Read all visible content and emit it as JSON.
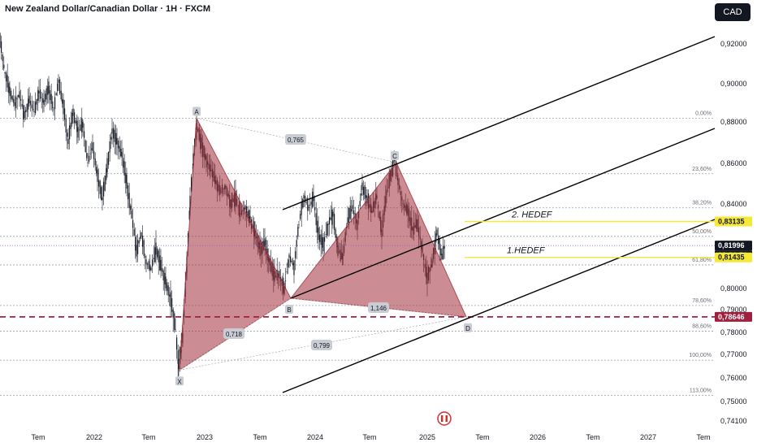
{
  "header": {
    "title": "New Zealand Dollar/Canadian Dollar · 1H · FXCM",
    "currency_button": "CAD"
  },
  "chart_data": {
    "type": "line",
    "title": "New Zealand Dollar/Canadian Dollar · 1H · FXCM",
    "ylim": [
      0.737,
      0.928
    ],
    "grid": true,
    "y_ticks": [
      "0,92000",
      "0,90000",
      "0,88000",
      "0,86000",
      "0,84000",
      "0,80000",
      "0,79000",
      "0,78000",
      "0,77000",
      "0,76000",
      "0,75000",
      "0,74100"
    ],
    "x_ticks": [
      "Tem",
      "2022",
      "Tem",
      "2023",
      "Tem",
      "2024",
      "Tem",
      "2025",
      "Tem",
      "2026",
      "Tem",
      "2027",
      "Tem"
    ],
    "price_tags": [
      {
        "label": "0,83135",
        "bg": "#f5e837",
        "fg": "#131722"
      },
      {
        "label": "0,81996",
        "bg": "#131722",
        "fg": "#ffffff"
      },
      {
        "label": "03:31:51",
        "bg": "#131722",
        "fg": "#ffffff"
      },
      {
        "label": "0,81435",
        "bg": "#f5e837",
        "fg": "#131722"
      },
      {
        "label": "0,78646",
        "bg": "#a0203f",
        "fg": "#ffffff"
      }
    ],
    "fib_levels": [
      {
        "label": "0,00%",
        "value": 0.8815
      },
      {
        "label": "23,60%",
        "value": 0.8545
      },
      {
        "label": "38,20%",
        "value": 0.8378
      },
      {
        "label": "50,00%",
        "value": 0.8243
      },
      {
        "label": "61,80%",
        "value": 0.8108
      },
      {
        "label": "78,60%",
        "value": 0.7916
      },
      {
        "label": "88,60%",
        "value": 0.7802
      },
      {
        "label": "100,00%",
        "value": 0.7672
      },
      {
        "label": "113,00%",
        "value": 0.7523
      }
    ],
    "pattern_points": [
      {
        "label": "A",
        "value": 0.8815
      },
      {
        "label": "B",
        "value": 0.795
      },
      {
        "label": "C",
        "value": 0.86
      },
      {
        "label": "D",
        "value": 0.7865
      },
      {
        "label": "X",
        "value": 0.763
      }
    ],
    "ratios": [
      "0,765",
      "1,146",
      "0,718",
      "0,799"
    ],
    "targets": [
      {
        "label": "2. HEDEF",
        "value": 0.83135
      },
      {
        "label": "1.HEDEF",
        "value": 0.81435
      }
    ],
    "colors": {
      "harmonic_fill": "#a0303a",
      "target_line": "#f5e837",
      "d_level_line": "#a0203f",
      "last_price_line": "#8a5cc9",
      "candle": "#131722"
    }
  }
}
